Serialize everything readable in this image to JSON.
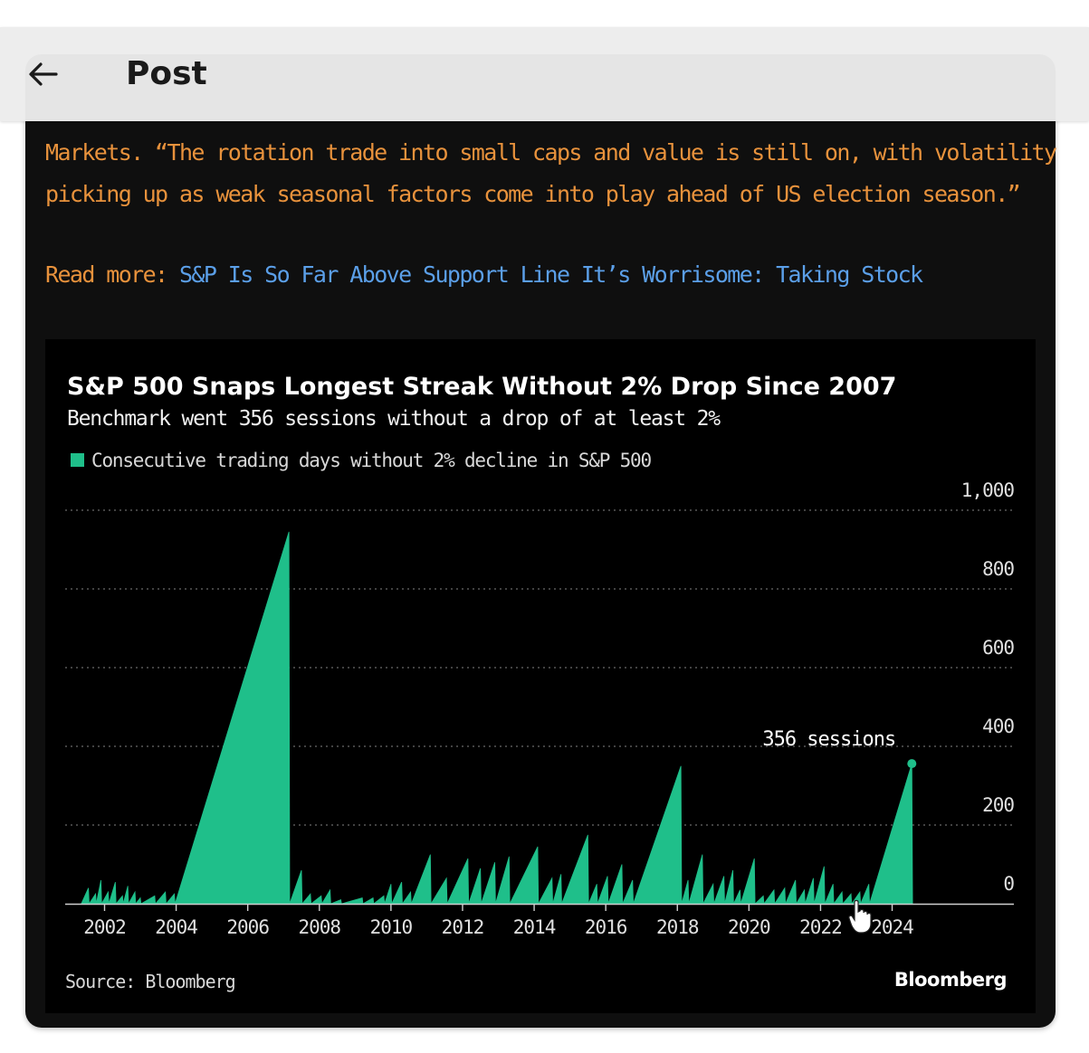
{
  "header": {
    "back_icon": "arrow-left-icon",
    "title": "Post"
  },
  "article": {
    "line1": "Markets. “The rotation trade into small caps and value is still on, with volatility",
    "line2": "picking up as weak seasonal factors come into play ahead of US election season.”",
    "read_more_label": "Read more:",
    "read_more_link": "S&P Is So Far Above Support Line It’s Worrisome: Taking Stock"
  },
  "colors": {
    "article_text": "#e8923c",
    "link": "#5b9fe8",
    "series": "#1fbf8a",
    "card_bg": "#0f0f0f",
    "chart_bg": "#000000"
  },
  "chart_data": {
    "type": "area",
    "title": "S&P 500 Snaps Longest Streak Without 2% Drop Since 2007",
    "subtitle": "Benchmark went 356 sessions without a drop of at least 2%",
    "legend": [
      "Consecutive trading days without 2% decline in S&P 500"
    ],
    "legend_position": "top-left",
    "y_axis_side": "right",
    "ylim": [
      0,
      1000
    ],
    "y_ticks": [
      0,
      200,
      400,
      600,
      800,
      1000
    ],
    "y_tick_labels": [
      "0",
      "200",
      "400",
      "600",
      "800",
      "1,000"
    ],
    "xlim": [
      2000.9,
      2027.4
    ],
    "x_ticks": [
      2002,
      2004,
      2006,
      2008,
      2010,
      2012,
      2014,
      2016,
      2018,
      2020,
      2022,
      2024
    ],
    "x_tick_labels": [
      "2002",
      "2004",
      "2006",
      "2008",
      "2010",
      "2012",
      "2014",
      "2016",
      "2018",
      "2020",
      "2022",
      "2024"
    ],
    "grid": "horizontal dotted",
    "series": [
      {
        "name": "Consecutive trading days without 2% decline in S&P 500",
        "peaks": [
          [
            2001.55,
            40
          ],
          [
            2001.75,
            25
          ],
          [
            2001.9,
            60
          ],
          [
            2002.1,
            30
          ],
          [
            2002.3,
            55
          ],
          [
            2002.5,
            20
          ],
          [
            2002.65,
            45
          ],
          [
            2002.85,
            30
          ],
          [
            2003.0,
            15
          ],
          [
            2003.4,
            20
          ],
          [
            2003.7,
            30
          ],
          [
            2003.95,
            25
          ],
          [
            2007.15,
            945
          ],
          [
            2007.5,
            85
          ],
          [
            2007.75,
            25
          ],
          [
            2008.05,
            20
          ],
          [
            2008.3,
            35
          ],
          [
            2008.6,
            10
          ],
          [
            2009.2,
            15
          ],
          [
            2009.5,
            15
          ],
          [
            2009.8,
            20
          ],
          [
            2010.0,
            50
          ],
          [
            2010.3,
            55
          ],
          [
            2010.55,
            30
          ],
          [
            2011.1,
            125
          ],
          [
            2011.55,
            65
          ],
          [
            2012.15,
            115
          ],
          [
            2012.5,
            90
          ],
          [
            2012.9,
            105
          ],
          [
            2013.3,
            120
          ],
          [
            2014.1,
            145
          ],
          [
            2014.5,
            65
          ],
          [
            2014.75,
            75
          ],
          [
            2015.5,
            175
          ],
          [
            2015.75,
            50
          ],
          [
            2016.05,
            70
          ],
          [
            2016.45,
            100
          ],
          [
            2016.75,
            60
          ],
          [
            2018.1,
            350
          ],
          [
            2018.3,
            60
          ],
          [
            2018.7,
            125
          ],
          [
            2019.0,
            50
          ],
          [
            2019.3,
            70
          ],
          [
            2019.55,
            85
          ],
          [
            2019.75,
            35
          ],
          [
            2020.15,
            115
          ],
          [
            2020.4,
            20
          ],
          [
            2020.7,
            35
          ],
          [
            2021.0,
            40
          ],
          [
            2021.3,
            60
          ],
          [
            2021.55,
            35
          ],
          [
            2021.8,
            65
          ],
          [
            2022.1,
            95
          ],
          [
            2022.35,
            50
          ],
          [
            2022.6,
            30
          ],
          [
            2022.85,
            25
          ],
          [
            2023.1,
            30
          ],
          [
            2023.35,
            50
          ],
          [
            2024.55,
            356
          ]
        ]
      }
    ],
    "annotation": {
      "text": "356 sessions",
      "x": 2024.55,
      "y": 356
    },
    "source": "Source: Bloomberg",
    "brand": "Bloomberg"
  }
}
